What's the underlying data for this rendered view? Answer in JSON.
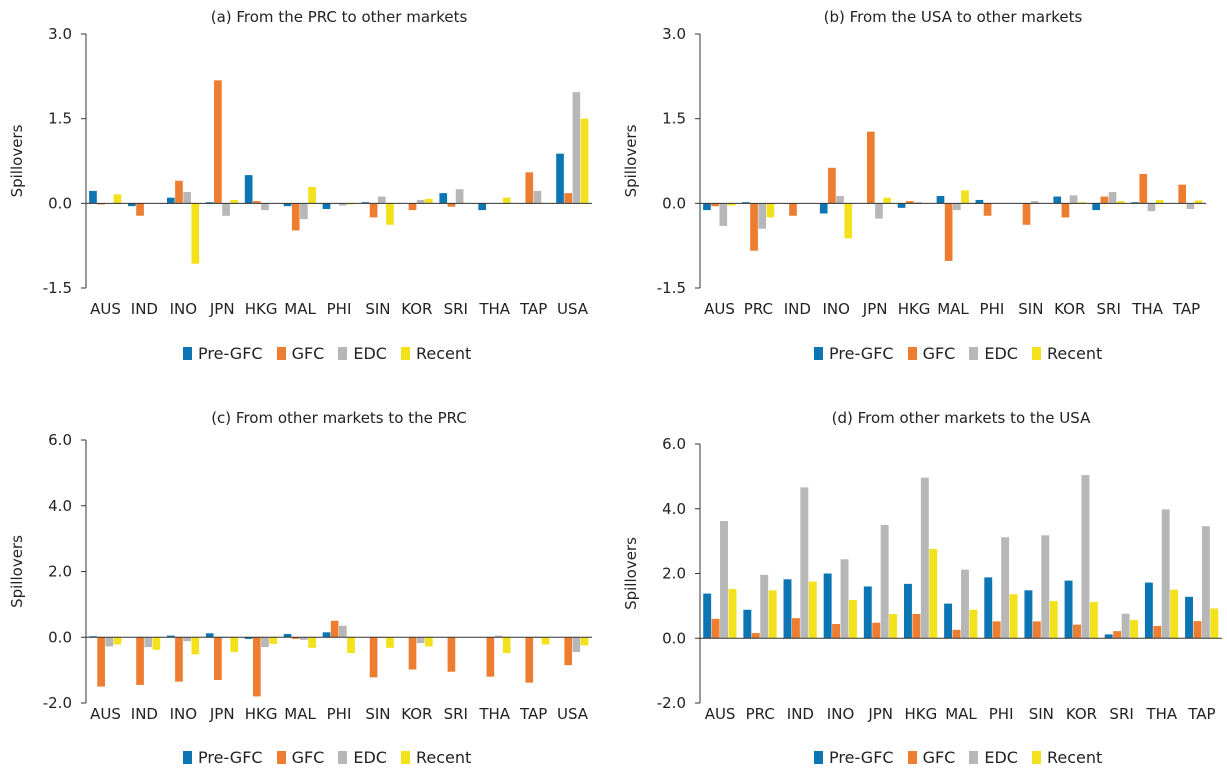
{
  "colors": {
    "Pre-GFC": "#0c76b4",
    "GFC": "#ed7d31",
    "EDC": "#b7b7b7",
    "Recent": "#f2e11b"
  },
  "legend": [
    "Pre-GFC",
    "GFC",
    "EDC",
    "Recent"
  ],
  "chart_data": [
    {
      "type": "bar",
      "title": "(a) From the PRC to other markets",
      "ylabel": "Spillovers",
      "ylim": [
        -1.5,
        3.0
      ],
      "yticks": [
        "-1.5",
        "0.0",
        "1.5",
        "3.0"
      ],
      "ytick_values": [
        -1.5,
        0,
        1.5,
        3.0
      ],
      "categories": [
        "AUS",
        "IND",
        "INO",
        "JPN",
        "HKG",
        "MAL",
        "PHI",
        "SIN",
        "KOR",
        "SRI",
        "THA",
        "TAP",
        "USA"
      ],
      "series": [
        {
          "name": "Pre-GFC",
          "values": [
            0.22,
            -0.05,
            0.1,
            0.02,
            0.5,
            -0.05,
            -0.1,
            0.02,
            0.0,
            0.18,
            -0.12,
            0.0,
            0.88
          ]
        },
        {
          "name": "GFC",
          "values": [
            -0.02,
            -0.22,
            0.4,
            2.18,
            0.04,
            -0.48,
            0.0,
            -0.25,
            -0.12,
            -0.06,
            0.0,
            0.55,
            0.18
          ]
        },
        {
          "name": "EDC",
          "values": [
            0.0,
            0.0,
            0.2,
            -0.22,
            -0.12,
            -0.28,
            -0.04,
            0.12,
            0.06,
            0.25,
            0.0,
            0.22,
            1.97
          ]
        },
        {
          "name": "Recent",
          "values": [
            0.16,
            0.0,
            -1.07,
            0.06,
            0.0,
            0.29,
            -0.02,
            -0.38,
            0.08,
            0.0,
            0.1,
            0.0,
            1.5
          ]
        }
      ]
    },
    {
      "type": "bar",
      "title": "(b) From the USA to other markets",
      "ylabel": "Spillovers",
      "ylim": [
        -1.5,
        3.0
      ],
      "yticks": [
        "-1.5",
        "0.0",
        "1.5",
        "3.0"
      ],
      "ytick_values": [
        -1.5,
        0,
        1.5,
        3.0
      ],
      "categories": [
        "AUS",
        "PRC",
        "IND",
        "INO",
        "JPN",
        "HKG",
        "MAL",
        "PHI",
        "SIN",
        "KOR",
        "SRI",
        "THA",
        "TAP"
      ],
      "series": [
        {
          "name": "Pre-GFC",
          "values": [
            -0.12,
            0.02,
            0.0,
            -0.18,
            0.0,
            -0.08,
            0.13,
            0.06,
            0.0,
            0.12,
            -0.12,
            0.02,
            0.0
          ]
        },
        {
          "name": "GFC",
          "values": [
            -0.05,
            -0.84,
            -0.22,
            0.63,
            1.27,
            0.04,
            -1.02,
            -0.22,
            -0.38,
            -0.25,
            0.12,
            0.52,
            0.33
          ]
        },
        {
          "name": "EDC",
          "values": [
            -0.4,
            -0.45,
            0.0,
            0.13,
            -0.27,
            0.02,
            -0.12,
            0.0,
            0.04,
            0.14,
            0.2,
            -0.14,
            -0.1
          ]
        },
        {
          "name": "Recent",
          "values": [
            -0.04,
            -0.25,
            0.0,
            -0.62,
            0.1,
            0.0,
            0.23,
            0.0,
            0.0,
            0.02,
            0.04,
            0.06,
            0.05
          ]
        }
      ]
    },
    {
      "type": "bar",
      "title": "(c) From other markets to the PRC",
      "ylabel": "Spillovers",
      "ylim": [
        -2.0,
        6.0
      ],
      "yticks": [
        "-2.0",
        "0.0",
        "2.0",
        "4.0",
        "6.0"
      ],
      "ytick_values": [
        -2,
        0,
        2,
        4,
        6
      ],
      "categories": [
        "AUS",
        "IND",
        "INO",
        "JPN",
        "HKG",
        "MAL",
        "PHI",
        "SIN",
        "KOR",
        "SRI",
        "THA",
        "TAP",
        "USA"
      ],
      "series": [
        {
          "name": "Pre-GFC",
          "values": [
            0.03,
            0.0,
            0.05,
            0.12,
            -0.05,
            0.1,
            0.15,
            0.0,
            0.0,
            0.0,
            0.0,
            0.0,
            0.0
          ]
        },
        {
          "name": "GFC",
          "values": [
            -1.5,
            -1.45,
            -1.35,
            -1.3,
            -1.8,
            -0.05,
            0.5,
            -1.22,
            -0.98,
            -1.05,
            -1.2,
            -1.38,
            -0.85
          ]
        },
        {
          "name": "EDC",
          "values": [
            -0.28,
            -0.3,
            -0.12,
            -0.02,
            -0.3,
            -0.08,
            0.35,
            -0.02,
            -0.18,
            0.0,
            0.05,
            -0.02,
            -0.45
          ]
        },
        {
          "name": "Recent",
          "values": [
            -0.22,
            -0.38,
            -0.52,
            -0.45,
            -0.2,
            -0.32,
            -0.48,
            -0.32,
            -0.28,
            0.0,
            -0.48,
            -0.22,
            -0.25
          ]
        }
      ]
    },
    {
      "type": "bar",
      "title": "(d) From other markets to the USA",
      "ylabel": "Spillovers",
      "ylim": [
        -2.0,
        6.0
      ],
      "yticks": [
        "-2.0",
        "0.0",
        "2.0",
        "4.0",
        "6.0"
      ],
      "ytick_values": [
        -2,
        0,
        2,
        4,
        6
      ],
      "categories": [
        "AUS",
        "PRC",
        "IND",
        "INO",
        "JPN",
        "HKG",
        "MAL",
        "PHI",
        "SIN",
        "KOR",
        "SRI",
        "THA",
        "TAP"
      ],
      "series": [
        {
          "name": "Pre-GFC",
          "values": [
            1.38,
            0.88,
            1.82,
            2.0,
            1.6,
            1.68,
            1.07,
            1.88,
            1.48,
            1.78,
            0.12,
            1.72,
            1.28
          ]
        },
        {
          "name": "GFC",
          "values": [
            0.6,
            0.16,
            0.62,
            0.44,
            0.48,
            0.75,
            0.26,
            0.52,
            0.52,
            0.42,
            0.22,
            0.38,
            0.53
          ]
        },
        {
          "name": "EDC",
          "values": [
            3.62,
            1.96,
            4.66,
            2.44,
            3.5,
            4.96,
            2.12,
            3.12,
            3.18,
            5.04,
            0.76,
            3.98,
            3.46
          ]
        },
        {
          "name": "Recent",
          "values": [
            1.52,
            1.48,
            1.75,
            1.18,
            0.75,
            2.76,
            0.88,
            1.36,
            1.15,
            1.12,
            0.56,
            1.5,
            0.92
          ]
        }
      ]
    }
  ]
}
